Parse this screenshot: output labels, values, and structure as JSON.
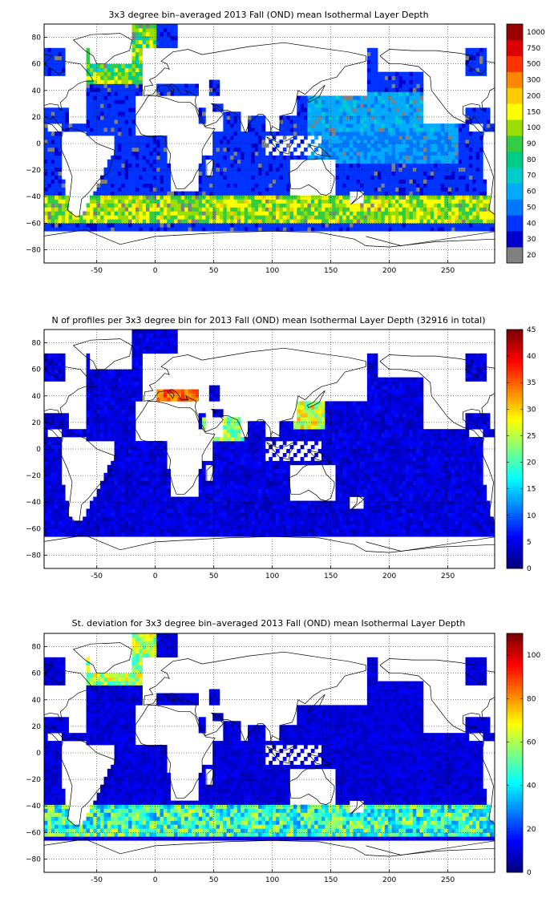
{
  "figure": {
    "colormap": "jet",
    "missing_color": "#ffffff",
    "axis_frame_color": "#000000",
    "grid": "dotted"
  },
  "chart_data": [
    {
      "type": "heatmap",
      "title": "3x3 degree bin–averaged 2013 Fall (OND) mean Isothermal Layer Depth",
      "xlabel": "",
      "ylabel": "",
      "xlim": [
        -95,
        290
      ],
      "ylim": [
        -90,
        90
      ],
      "x_ticks": [
        "-50",
        "0",
        "50",
        "100",
        "150",
        "200",
        "250"
      ],
      "y_ticks": [
        "80",
        "60",
        "40",
        "20",
        "0",
        "−20",
        "−40",
        "−60",
        "−80"
      ],
      "bin_size_deg": 3,
      "grid": true,
      "colorbar": {
        "position": "right",
        "scale": "categorical",
        "labels": [
          "20",
          "30",
          "40",
          "50",
          "60",
          "70",
          "80",
          "90",
          "100",
          "150",
          "200",
          "300",
          "500",
          "750",
          "1000"
        ],
        "colors": [
          "#808080",
          "#0000cc",
          "#0033ff",
          "#0077ff",
          "#00aaff",
          "#00cccc",
          "#00cc88",
          "#33cc44",
          "#99dd00",
          "#ffff00",
          "#ffcc00",
          "#ff8800",
          "#ff3300",
          "#dd0000",
          "#990000"
        ]
      },
      "regions": {
        "north_atlantic_subpolar": "high (150–750)",
        "tropical_pacific": "40–80",
        "southern_ocean_40s_60s": "100–500",
        "subtropical_gyres": "20–60"
      }
    },
    {
      "type": "heatmap",
      "title": "N of profiles per 3x3 degree bin for 2013 Fall (OND) mean Isothermal Layer Depth  (32916 in total)",
      "xlabel": "",
      "ylabel": "",
      "xlim": [
        -95,
        290
      ],
      "ylim": [
        -90,
        90
      ],
      "x_ticks": [
        "-50",
        "0",
        "50",
        "100",
        "150",
        "200",
        "250"
      ],
      "y_ticks": [
        "80",
        "60",
        "40",
        "20",
        "0",
        "−20",
        "−40",
        "−60",
        "−80"
      ],
      "bin_size_deg": 3,
      "total_profiles": 32916,
      "grid": true,
      "colorbar": {
        "position": "right",
        "scale": "linear",
        "range": [
          0,
          45
        ],
        "labels": [
          "0",
          "5",
          "10",
          "15",
          "20",
          "25",
          "30",
          "35",
          "40",
          "45"
        ]
      },
      "regions": {
        "open_ocean": "2–12",
        "mediterranean": "35–45",
        "kuroshio_east_china_sea": "30–45",
        "red_sea_arabian_sea": "25–45"
      }
    },
    {
      "type": "heatmap",
      "title": "St. deviation for 3x3 degree bin–averaged 2013 Fall (OND) mean Isothermal Layer Depth",
      "xlabel": "",
      "ylabel": "",
      "xlim": [
        -95,
        290
      ],
      "ylim": [
        -90,
        90
      ],
      "x_ticks": [
        "-50",
        "0",
        "50",
        "100",
        "150",
        "200",
        "250"
      ],
      "y_ticks": [
        "80",
        "60",
        "40",
        "20",
        "0",
        "−20",
        "−40",
        "−60",
        "−80"
      ],
      "bin_size_deg": 3,
      "grid": true,
      "colorbar": {
        "position": "right",
        "scale": "linear",
        "range": [
          0,
          110
        ],
        "labels": [
          "0",
          "20",
          "40",
          "60",
          "80",
          "100"
        ]
      },
      "regions": {
        "subtropics_tropics": "5–20",
        "southern_ocean_45s_60s": "40–110",
        "north_atlantic_subpolar": "60–110"
      }
    }
  ]
}
